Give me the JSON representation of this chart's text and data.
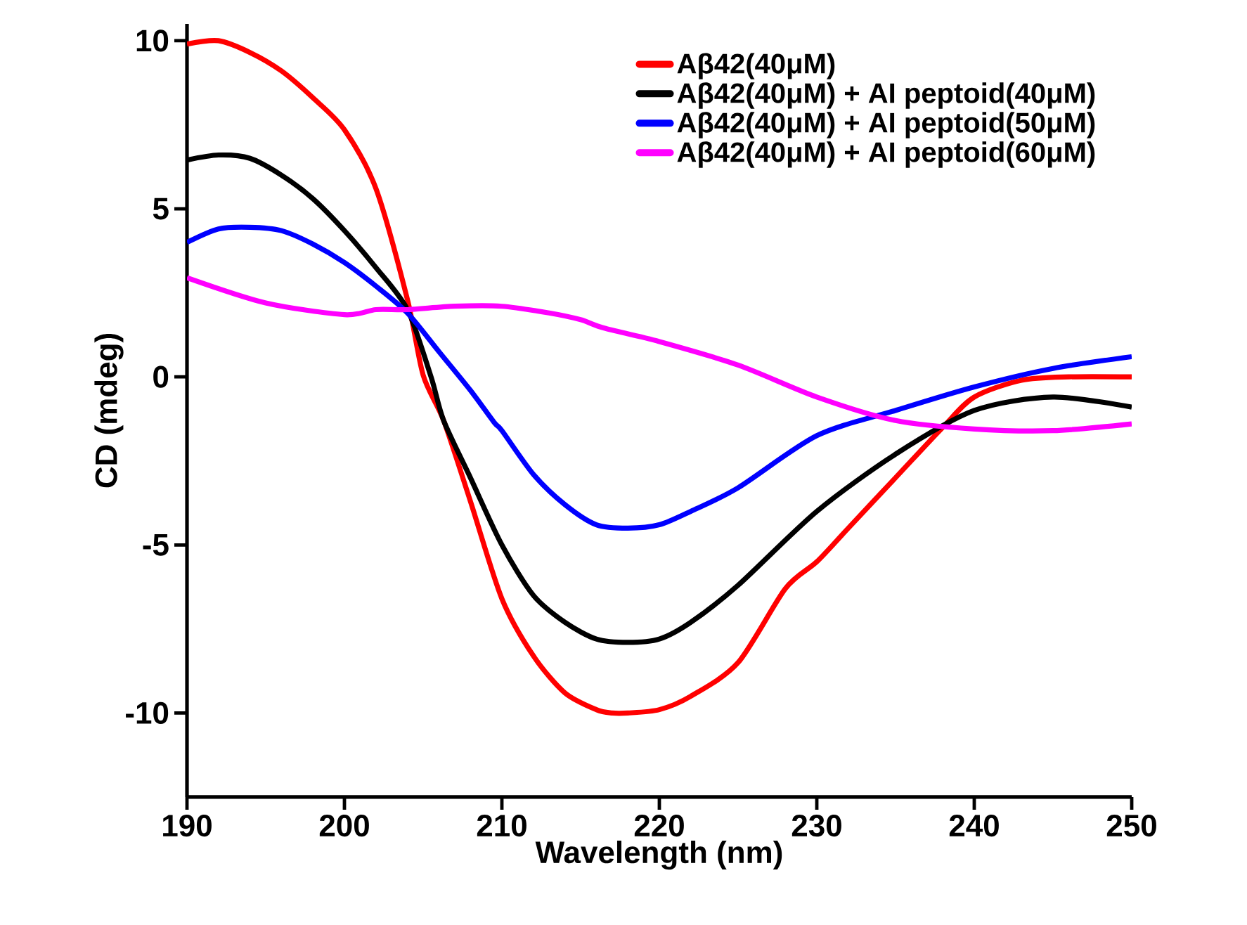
{
  "chart_data": {
    "type": "line",
    "xlabel": "Wavelength (nm)",
    "ylabel": "CD (mdeg)",
    "xlim": [
      190,
      250
    ],
    "xticks": [
      190,
      200,
      210,
      220,
      230,
      240,
      250
    ],
    "ylim": [
      -12.5,
      10.5
    ],
    "yticks": [
      -10,
      -5,
      0,
      5,
      10
    ],
    "grid": false,
    "legend": "top right",
    "line_style": "solid",
    "marker": "none",
    "series": [
      {
        "name": "Aβ42(40μM)",
        "color": "#ff0000",
        "x": [
          190,
          192,
          194,
          196,
          198,
          200,
          202,
          204,
          205,
          206.3,
          208,
          210,
          212,
          214,
          216,
          217,
          218,
          220,
          222,
          225,
          228,
          230,
          232,
          235,
          238,
          240,
          243,
          246,
          250
        ],
        "values": [
          9.9,
          10.0,
          9.65,
          9.1,
          8.3,
          7.35,
          5.6,
          2.3,
          0.05,
          -1.3,
          -3.7,
          -6.6,
          -8.3,
          -9.4,
          -9.9,
          -10.0,
          -10.0,
          -9.9,
          -9.5,
          -8.5,
          -6.3,
          -5.5,
          -4.5,
          -3.0,
          -1.5,
          -0.6,
          -0.1,
          0.0,
          0.0
        ]
      },
      {
        "name": "Aβ42(40μM) + AI peptoid(40μM)",
        "color": "#000000",
        "x": [
          190,
          192,
          194,
          196,
          198,
          200,
          202,
          204,
          205.5,
          206.3,
          208,
          210,
          212,
          214,
          216,
          218,
          220,
          222,
          225,
          230,
          235,
          240,
          245,
          250
        ],
        "values": [
          6.45,
          6.6,
          6.5,
          6.0,
          5.3,
          4.35,
          3.25,
          2.0,
          0.0,
          -1.3,
          -3.0,
          -5.0,
          -6.5,
          -7.3,
          -7.8,
          -7.9,
          -7.8,
          -7.3,
          -6.2,
          -4.0,
          -2.3,
          -1.0,
          -0.6,
          -0.9
        ]
      },
      {
        "name": "Aβ42(40μM) + AI peptoid(50μM)",
        "color": "#0000ff",
        "x": [
          190,
          192,
          194,
          196,
          198,
          200,
          202,
          204,
          206,
          208,
          209.5,
          210,
          212,
          214,
          216,
          218,
          220,
          222,
          225,
          230,
          235,
          240,
          245,
          250
        ],
        "values": [
          4.0,
          4.4,
          4.45,
          4.35,
          3.95,
          3.4,
          2.7,
          1.9,
          0.75,
          -0.4,
          -1.35,
          -1.6,
          -2.9,
          -3.8,
          -4.4,
          -4.5,
          -4.4,
          -4.0,
          -3.3,
          -1.75,
          -1.0,
          -0.3,
          0.25,
          0.6
        ]
      },
      {
        "name": "Aβ42(40μM) + AI peptoid(60μM)",
        "color": "#ff00ff",
        "x": [
          190,
          195,
          200,
          202,
          204,
          207,
          210,
          213,
          215,
          216.5,
          220,
          225,
          230,
          235,
          240,
          245,
          250
        ],
        "values": [
          2.95,
          2.2,
          1.85,
          2.0,
          2.0,
          2.1,
          2.1,
          1.9,
          1.7,
          1.45,
          1.05,
          0.35,
          -0.6,
          -1.3,
          -1.55,
          -1.6,
          -1.4
        ]
      }
    ]
  }
}
